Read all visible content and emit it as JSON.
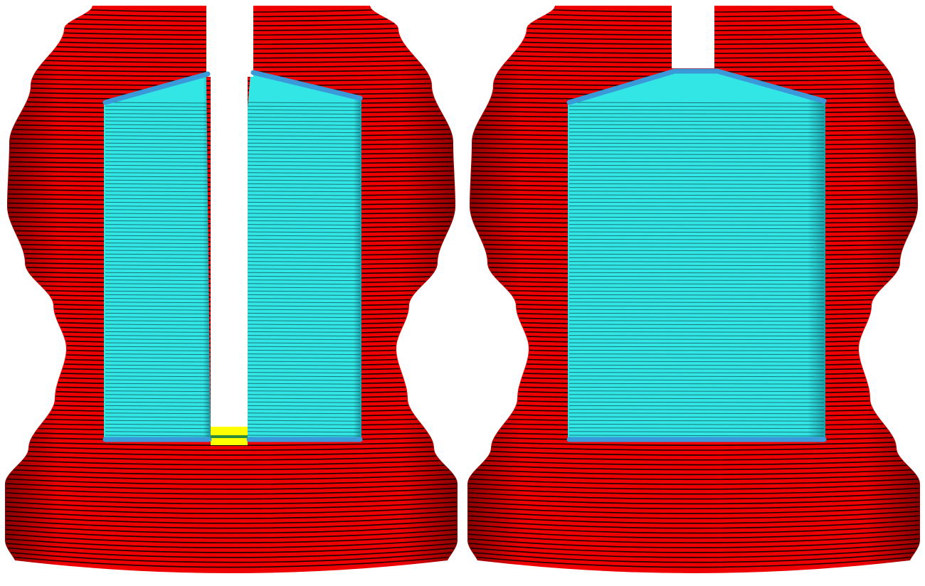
{
  "colors": {
    "background": "#ffffff",
    "outer_wall": "#ee0000",
    "outer_wall_dark": "#8a0000",
    "layer_line": "#1a0000",
    "inner_wall": "#33e6e6",
    "inner_wall_dark": "#1a9fa8",
    "inner_line": "#0a3a40",
    "top_edge": "#3a9ad9",
    "bottom_fill": "#ffff00",
    "bottom_accent": "#2e8b3a"
  },
  "views": [
    {
      "id": "left",
      "variant": "split-gap",
      "layers": 120
    },
    {
      "id": "right",
      "variant": "closed",
      "layers": 120
    }
  ]
}
